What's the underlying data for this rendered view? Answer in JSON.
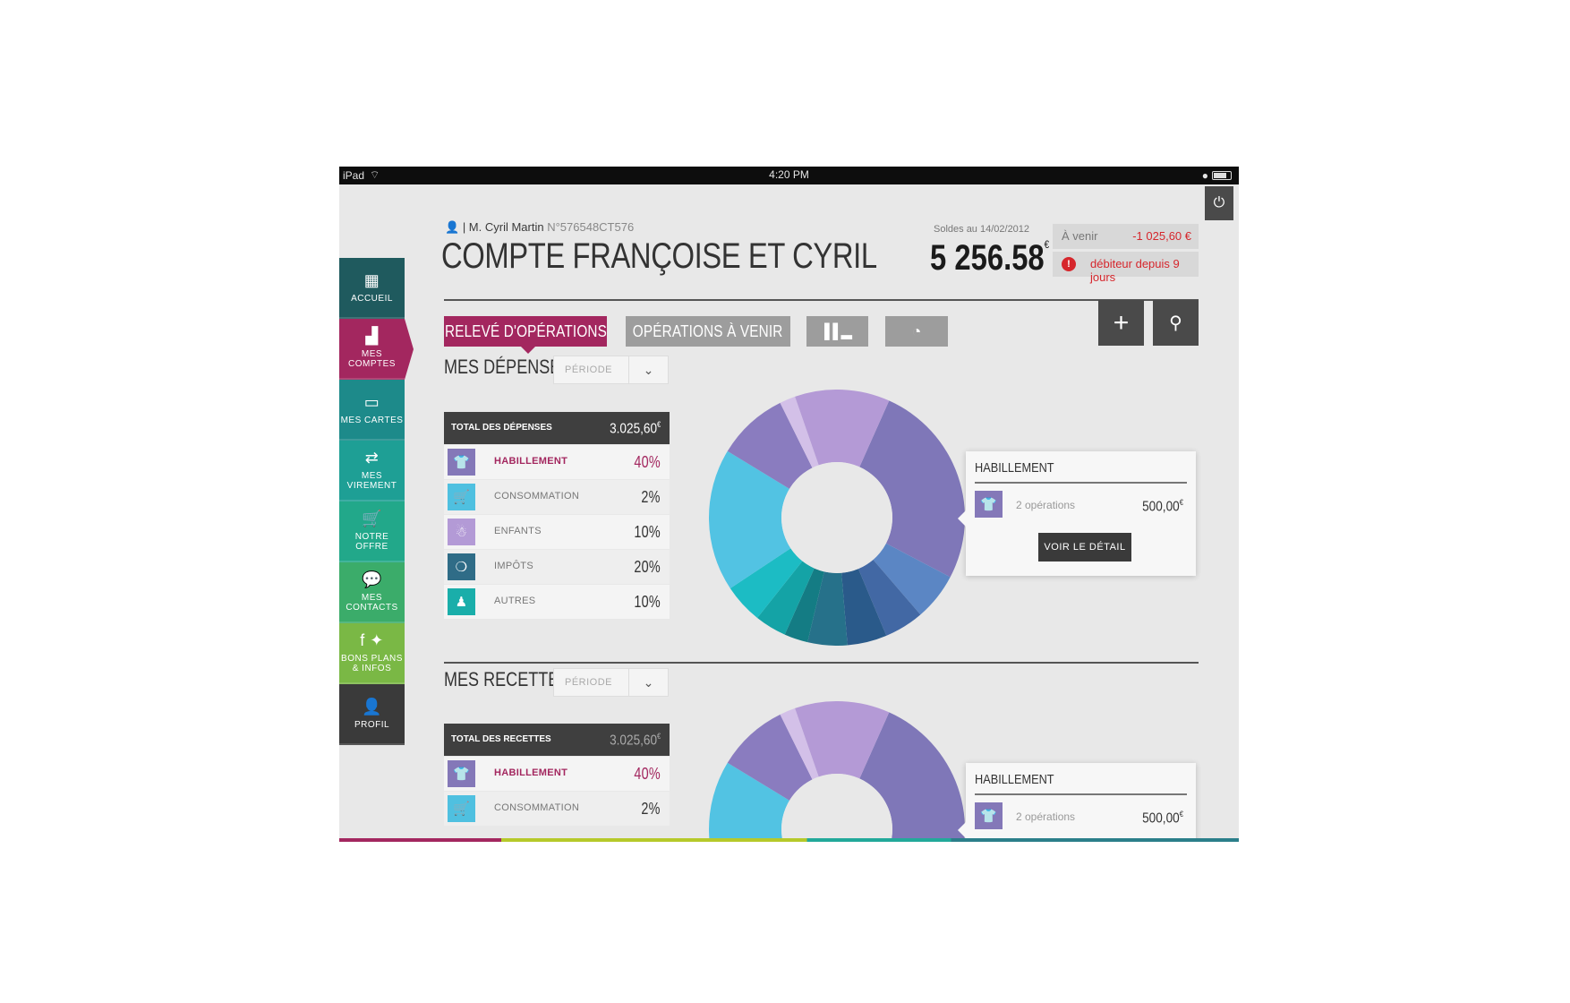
{
  "status_bar": {
    "device": "iPad",
    "time": "4:20 PM"
  },
  "sidebar": {
    "items": [
      {
        "label": "ACCUEIL",
        "icon": "grid-icon",
        "color": "#1f5a5e"
      },
      {
        "label": "MES COMPTES",
        "icon": "bar-chart-icon",
        "color": "#a3275f",
        "active": true
      },
      {
        "label": "MES CARTES",
        "icon": "card-icon",
        "color": "#1d8a8a"
      },
      {
        "label": "MES VIREMENT",
        "icon": "transfer-icon",
        "color": "#1e9f95"
      },
      {
        "label": "NOTRE OFFRE",
        "icon": "cart-icon",
        "color": "#22a88a"
      },
      {
        "label": "MES CONTACTS",
        "icon": "chat-icon",
        "color": "#3bac6a"
      },
      {
        "label": "BONS PLANS & INFOS",
        "icon": "social-icon",
        "color": "#7ab845"
      },
      {
        "label": "PROFIL",
        "icon": "user-icon",
        "color": "#3a3a3a"
      }
    ]
  },
  "header": {
    "user": "| M. Cyril Martin",
    "account_number": "N°576548CT576",
    "title": "COMPTE FRANÇOISE ET CYRIL",
    "solde_label": "Soldes au 14/02/2012",
    "solde_value": "5 256.58",
    "currency": "€",
    "avenir_label": "À venir",
    "avenir_value": "-1 025,60 €",
    "debit_text": "débiteur depuis 9 jours"
  },
  "tabs": {
    "releve": "RELEVÉ D'OPÉRATIONS",
    "a_venir": "OPÉRATIONS À VENIR"
  },
  "depenses": {
    "title": "MES DÉPENSES",
    "periode": "PÉRIODE",
    "total_label": "TOTAL DES DÉPENSES",
    "total_value": "3.025,60",
    "rows": [
      {
        "icon": "shirt-icon",
        "label": "HABILLEMENT",
        "pct": "40%",
        "color": "#8478b8",
        "highlight": true
      },
      {
        "icon": "cart-icon",
        "label": "CONSOMMATION",
        "pct": "2%",
        "color": "#4fc0e0"
      },
      {
        "icon": "child-icon",
        "label": "ENFANTS",
        "pct": "10%",
        "color": "#b39ad6"
      },
      {
        "icon": "tax-icon",
        "label": "IMPÔTS",
        "pct": "20%",
        "color": "#2f6c87"
      },
      {
        "icon": "other-icon",
        "label": "AUTRES",
        "pct": "10%",
        "color": "#1aaeaa"
      }
    ]
  },
  "recettes": {
    "title": "MES RECETTES",
    "periode": "PÉRIODE",
    "total_label": "TOTAL DES RECETTES",
    "total_value": "3.025,60",
    "rows": [
      {
        "icon": "shirt-icon",
        "label": "HABILLEMENT",
        "pct": "40%",
        "color": "#8478b8",
        "highlight": true
      },
      {
        "icon": "cart-icon",
        "label": "CONSOMMATION",
        "pct": "2%",
        "color": "#4fc0e0"
      }
    ]
  },
  "popup": {
    "title": "HABILLEMENT",
    "ops": "2 opérations",
    "amount": "500,00",
    "button": "VOIR LE DÉTAIL"
  },
  "chart_data": {
    "type": "pie",
    "title": "",
    "slices": [
      {
        "value": 26,
        "color": "#7f77b8"
      },
      {
        "value": 6,
        "color": "#5b86c4"
      },
      {
        "value": 5,
        "color": "#4268a4"
      },
      {
        "value": 5,
        "color": "#2a5a8a"
      },
      {
        "value": 5,
        "color": "#26718a"
      },
      {
        "value": 3,
        "color": "#147c84"
      },
      {
        "value": 4,
        "color": "#14a3a6"
      },
      {
        "value": 5,
        "color": "#1cbcc4"
      },
      {
        "value": 18,
        "color": "#52c3e3"
      },
      {
        "value": 9,
        "color": "#8a7cbf"
      },
      {
        "value": 2,
        "color": "#d3c0e8"
      },
      {
        "value": 12,
        "color": "#b49ad6"
      }
    ]
  }
}
